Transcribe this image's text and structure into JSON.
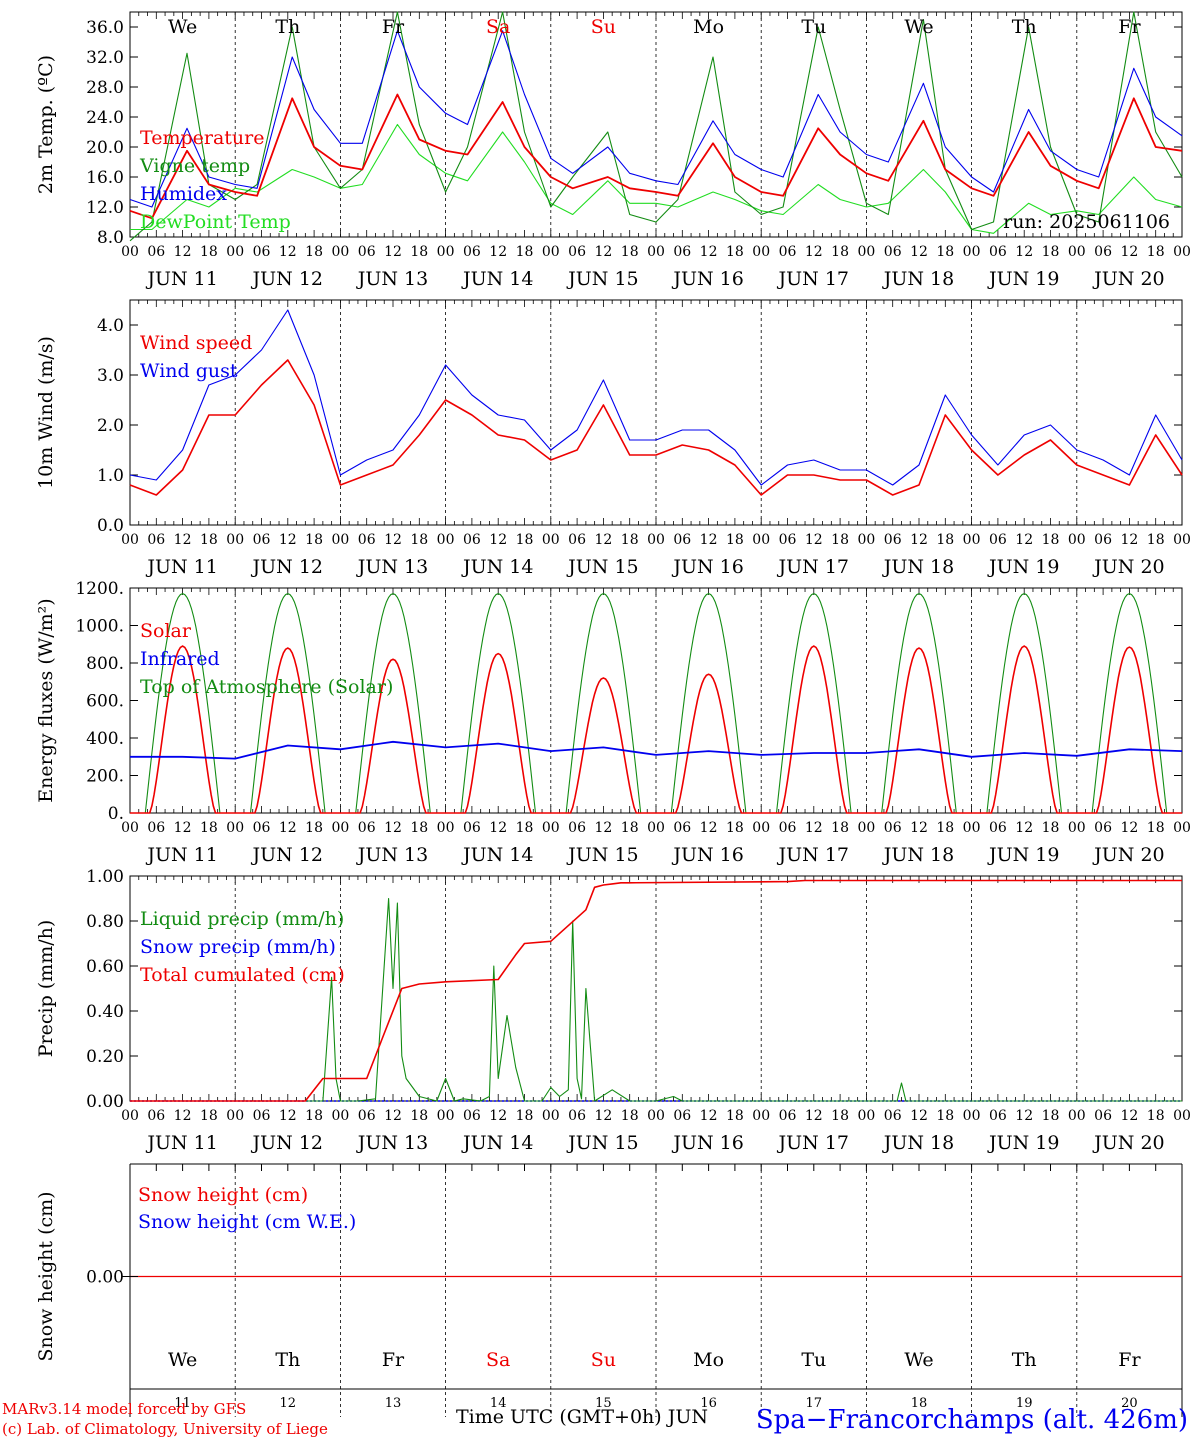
{
  "days": [
    "11",
    "12",
    "13",
    "14",
    "15",
    "16",
    "17",
    "18",
    "19",
    "20"
  ],
  "weekdays": [
    {
      "label": "We",
      "color": "#000000"
    },
    {
      "label": "Th",
      "color": "#000000"
    },
    {
      "label": "Fr",
      "color": "#000000"
    },
    {
      "label": "Sa",
      "color": "#ee0000"
    },
    {
      "label": "Su",
      "color": "#ee0000"
    },
    {
      "label": "Mo",
      "color": "#000000"
    },
    {
      "label": "Tu",
      "color": "#000000"
    },
    {
      "label": "We",
      "color": "#000000"
    },
    {
      "label": "Th",
      "color": "#000000"
    },
    {
      "label": "Fr",
      "color": "#000000"
    }
  ],
  "hour_ticks": [
    "00",
    "06",
    "12",
    "18"
  ],
  "date_prefix": "JUN",
  "run_label": "run: 2025061106",
  "footer": {
    "credit1": "MARv3.14 model forced by GFS",
    "credit2": "(c) Lab. of Climatology, University of Liege",
    "xaxis": "Time UTC (GMT+0h) JUN",
    "station": "Spa−Francorchamps (alt. 426m)"
  },
  "colors": {
    "red": "#ee0000",
    "green": "#138c13",
    "blue": "#0000ee",
    "lightgreen": "#22dd22"
  },
  "chart_data": [
    {
      "id": "temp",
      "type": "line",
      "ylabel": "2m Temp. (ºC)",
      "ylim": [
        8,
        38
      ],
      "yticks": [
        "8.0",
        "12.0",
        "16.0",
        "20.0",
        "24.0",
        "28.0",
        "32.0",
        "36.0"
      ],
      "ytick_values": [
        8,
        12,
        16,
        20,
        24,
        28,
        32,
        36
      ],
      "legend": [
        {
          "name": "Temperature",
          "color": "red"
        },
        {
          "name": "Vigne temp",
          "color": "green"
        },
        {
          "name": "Humidex",
          "color": "blue"
        },
        {
          "name": "DewPoint Temp",
          "color": "lightgreen"
        }
      ],
      "x_hours": [
        0,
        5,
        13,
        18,
        24,
        29,
        37,
        42,
        48,
        53,
        61,
        66,
        72,
        77,
        85,
        90,
        96,
        101,
        109,
        114,
        120,
        125,
        133,
        138,
        144,
        149,
        157,
        162,
        168,
        173,
        181,
        186,
        192,
        197,
        205,
        210,
        216,
        221,
        229,
        234,
        240
      ],
      "series": [
        {
          "name": "Temperature",
          "color": "red",
          "values": [
            11.5,
            10.5,
            19.5,
            15,
            14,
            13.5,
            26.5,
            20,
            17.5,
            17,
            27,
            21,
            19.5,
            19,
            26,
            20,
            16,
            14.5,
            16,
            14.5,
            14,
            13.5,
            20.5,
            16,
            14,
            13.5,
            22.5,
            19,
            16.5,
            15.5,
            23.5,
            17,
            14.5,
            13.5,
            22,
            17.5,
            15.5,
            14.5,
            26.5,
            20,
            19.5
          ]
        },
        {
          "name": "Vigne temp",
          "color": "green",
          "values": [
            7.5,
            10,
            32.5,
            15,
            13,
            15,
            36,
            20,
            14.5,
            17,
            38,
            23,
            14,
            20,
            38,
            22,
            12,
            16,
            22,
            11,
            10,
            13,
            32,
            14,
            11,
            12,
            36,
            25,
            12.5,
            11,
            37,
            17,
            9,
            10,
            36,
            20,
            11,
            10,
            38,
            22,
            16
          ]
        },
        {
          "name": "Humidex",
          "color": "blue",
          "values": [
            13,
            12,
            22.5,
            16,
            15,
            14.5,
            32,
            25,
            20.5,
            20.5,
            35.5,
            28,
            24.5,
            23,
            35.5,
            27,
            18.5,
            16.5,
            20,
            16.5,
            15.5,
            15,
            23.5,
            19,
            17,
            16,
            27,
            22,
            19,
            18,
            28.5,
            20,
            16,
            14,
            25,
            19.5,
            17,
            16,
            30.5,
            24,
            21.5
          ]
        },
        {
          "name": "DewPoint Temp",
          "color": "lightgreen",
          "values": [
            9,
            9,
            13,
            12,
            14.5,
            14,
            17,
            16,
            14.5,
            15,
            23,
            19,
            16.5,
            15.5,
            22,
            18,
            12.5,
            11,
            15.5,
            12.5,
            12.5,
            12,
            14,
            13,
            11.5,
            11,
            15,
            13,
            12,
            12.5,
            17,
            14,
            9,
            8.5,
            12.5,
            11,
            11.5,
            11,
            16,
            13,
            12
          ]
        }
      ]
    },
    {
      "id": "wind",
      "type": "line",
      "ylabel": "10m Wind (m/s)",
      "ylim": [
        0,
        4.5
      ],
      "yticks": [
        "0.0",
        "1.0",
        "2.0",
        "3.0",
        "4.0"
      ],
      "ytick_values": [
        0,
        1,
        2,
        3,
        4
      ],
      "legend": [
        {
          "name": "Wind speed",
          "color": "red"
        },
        {
          "name": "Wind gust",
          "color": "blue"
        }
      ],
      "x_hours": [
        0,
        6,
        12,
        18,
        24,
        30,
        36,
        42,
        48,
        54,
        60,
        66,
        72,
        78,
        84,
        90,
        96,
        102,
        108,
        114,
        120,
        126,
        132,
        138,
        144,
        150,
        156,
        162,
        168,
        174,
        180,
        186,
        192,
        198,
        204,
        210,
        216,
        222,
        228,
        234,
        240
      ],
      "series": [
        {
          "name": "Wind speed",
          "color": "red",
          "values": [
            0.8,
            0.6,
            1.1,
            2.2,
            2.2,
            2.8,
            3.3,
            2.4,
            0.8,
            1.0,
            1.2,
            1.8,
            2.5,
            2.2,
            1.8,
            1.7,
            1.3,
            1.5,
            2.4,
            1.4,
            1.4,
            1.6,
            1.5,
            1.2,
            0.6,
            1.0,
            1.0,
            0.9,
            0.9,
            0.6,
            0.8,
            2.2,
            1.5,
            1.0,
            1.4,
            1.7,
            1.2,
            1.0,
            0.8,
            1.8,
            1.0
          ]
        },
        {
          "name": "Wind gust",
          "color": "blue",
          "values": [
            1.0,
            0.9,
            1.5,
            2.8,
            3.0,
            3.5,
            4.3,
            3.0,
            1.0,
            1.3,
            1.5,
            2.2,
            3.2,
            2.6,
            2.2,
            2.1,
            1.5,
            1.9,
            2.9,
            1.7,
            1.7,
            1.9,
            1.9,
            1.5,
            0.8,
            1.2,
            1.3,
            1.1,
            1.1,
            0.8,
            1.2,
            2.6,
            1.8,
            1.2,
            1.8,
            2.0,
            1.5,
            1.3,
            1.0,
            2.2,
            1.3
          ]
        }
      ]
    },
    {
      "id": "energy",
      "type": "line",
      "ylabel": "Energy fluxes (W/m²)",
      "ylim": [
        0,
        1200
      ],
      "yticks": [
        "0.",
        "200.",
        "400.",
        "600.",
        "800.",
        "1000.",
        "1200."
      ],
      "ytick_values": [
        0,
        200,
        400,
        600,
        800,
        1000,
        1200
      ],
      "legend": [
        {
          "name": "Solar",
          "color": "red"
        },
        {
          "name": "Infrared",
          "color": "blue"
        },
        {
          "name": "Top of Atmosphere (Solar)",
          "color": "green"
        }
      ],
      "solar_peaks": [
        890,
        880,
        820,
        850,
        720,
        740,
        890,
        880,
        890,
        885
      ],
      "toa_peak": 1170,
      "infrared_x_hours": [
        0,
        12,
        24,
        36,
        48,
        60,
        72,
        84,
        96,
        108,
        120,
        132,
        144,
        156,
        168,
        180,
        192,
        204,
        216,
        228,
        240
      ],
      "infrared_values": [
        300,
        300,
        290,
        360,
        340,
        380,
        350,
        370,
        330,
        350,
        310,
        330,
        310,
        320,
        320,
        340,
        300,
        320,
        305,
        340,
        330
      ]
    },
    {
      "id": "precip",
      "type": "line",
      "ylabel": "Precip (mm/h)",
      "ylim": [
        0,
        1.0
      ],
      "yticks": [
        "0.00",
        "0.20",
        "0.40",
        "0.60",
        "0.80",
        "1.00"
      ],
      "ytick_values": [
        0,
        0.2,
        0.4,
        0.6,
        0.8,
        1.0
      ],
      "legend": [
        {
          "name": "Liquid precip (mm/h)",
          "color": "green"
        },
        {
          "name": "Snow precip (mm/h)",
          "color": "blue"
        },
        {
          "name": "Total cumulated (cm)",
          "color": "red"
        }
      ],
      "cumulated_x_hours": [
        0,
        40,
        44,
        54,
        58,
        62,
        66,
        72,
        84,
        88,
        90,
        96,
        104,
        106,
        108,
        110,
        112,
        114,
        150,
        154,
        168,
        240
      ],
      "cumulated_values": [
        0,
        0,
        0.1,
        0.1,
        0.3,
        0.5,
        0.52,
        0.53,
        0.54,
        0.65,
        0.7,
        0.71,
        0.85,
        0.95,
        0.96,
        0.965,
        0.97,
        0.97,
        0.975,
        0.98,
        0.98,
        0.98
      ],
      "liquid_x_hours": [
        0,
        44,
        46,
        47,
        48,
        52,
        56,
        59,
        60,
        61,
        62,
        63,
        66,
        70,
        72,
        74,
        76,
        80,
        82,
        83,
        84,
        86,
        88,
        90,
        94,
        96,
        98,
        100,
        101,
        102,
        103,
        104,
        106,
        110,
        114,
        120,
        124,
        126,
        130,
        175,
        176,
        177,
        240
      ],
      "liquid_values": [
        0,
        0,
        0.55,
        0.1,
        0,
        0,
        0.01,
        0.9,
        0.5,
        0.88,
        0.2,
        0.1,
        0.02,
        0,
        0.1,
        0,
        0.01,
        0,
        0.02,
        0.6,
        0.1,
        0.38,
        0.15,
        0,
        0,
        0.06,
        0.02,
        0.05,
        0.8,
        0.1,
        0.01,
        0.5,
        0,
        0.05,
        0,
        0,
        0.02,
        0,
        0,
        0,
        0.08,
        0,
        0
      ]
    },
    {
      "id": "snow",
      "type": "line",
      "ylabel": "Snow height (cm)",
      "yticks": [
        "0.00"
      ],
      "ytick_values": [
        0
      ],
      "legend": [
        {
          "name": "Snow height (cm)",
          "color": "red"
        },
        {
          "name": "Snow height (cm W.E.)",
          "color": "blue"
        }
      ],
      "values": [
        0
      ]
    }
  ]
}
